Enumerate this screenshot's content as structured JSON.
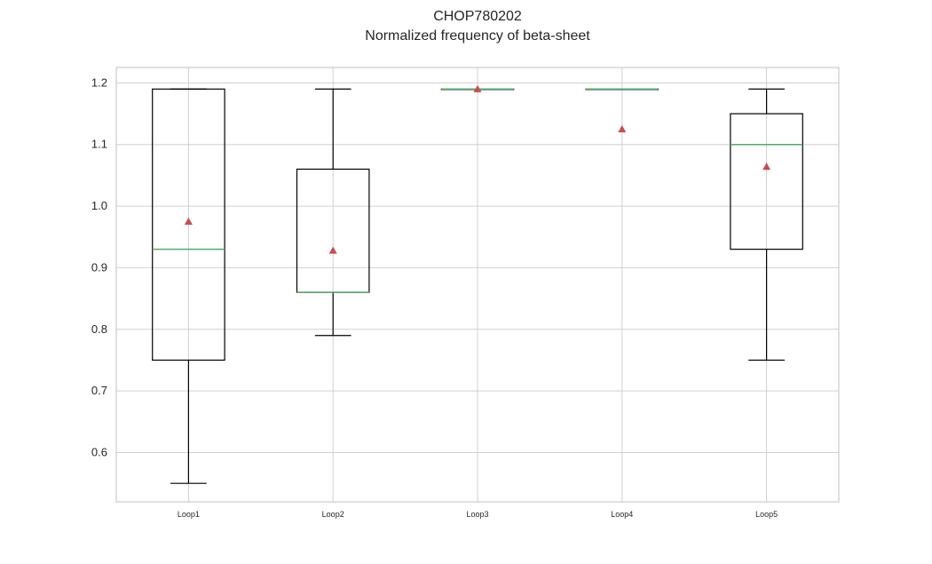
{
  "chart_data": {
    "type": "box",
    "title": "CHOP780202",
    "subtitle": "Normalized frequency of beta-sheet",
    "xlabel": "",
    "ylabel": "",
    "ylim": [
      0.52,
      1.225
    ],
    "y_ticks": [
      "0.6",
      "0.7",
      "0.8",
      "0.9",
      "1.0",
      "1.1",
      "1.2"
    ],
    "grid": true,
    "categories": [
      "Loop1",
      "Loop2",
      "Loop3",
      "Loop4",
      "Loop5"
    ],
    "boxes": [
      {
        "whisker_low": 0.55,
        "q1": 0.75,
        "median": 0.93,
        "q3": 1.19,
        "whisker_high": 1.19,
        "mean": 0.975
      },
      {
        "whisker_low": 0.79,
        "q1": 0.86,
        "median": 0.86,
        "q3": 1.06,
        "whisker_high": 1.19,
        "mean": 0.928
      },
      {
        "whisker_low": 1.19,
        "q1": 1.19,
        "median": 1.19,
        "q3": 1.19,
        "whisker_high": 1.19,
        "mean": 1.19
      },
      {
        "whisker_low": 1.19,
        "q1": 1.19,
        "median": 1.19,
        "q3": 1.19,
        "whisker_high": 1.19,
        "mean": 1.125
      },
      {
        "whisker_low": 0.75,
        "q1": 0.93,
        "median": 1.1,
        "q3": 1.15,
        "whisker_high": 1.19,
        "mean": 1.064
      }
    ],
    "colors": {
      "box": "#000000",
      "median": "#55a868",
      "mean_marker": "#c44e52",
      "grid": "#d0d0d0",
      "frame": "#cccccc"
    }
  }
}
